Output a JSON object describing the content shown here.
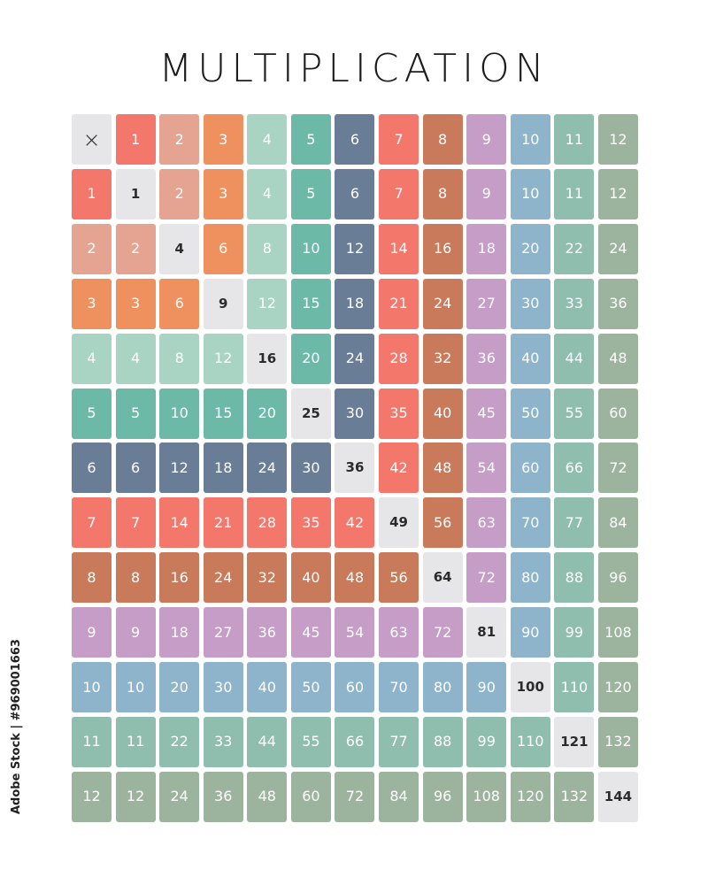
{
  "title": "MULTIPLICATION",
  "corner_symbol": "×",
  "side_text": "Adobe Stock | #969001663",
  "colors": {
    "diagonal": "#e6e6e8",
    "numbers": {
      "1": "#f4776b",
      "2": "#e5a392",
      "3": "#ef915f",
      "4": "#a9d4c3",
      "5": "#6db9a8",
      "6": "#6a7d96",
      "7": "#f4776b",
      "8": "#c87a5a",
      "9": "#c59dc7",
      "10": "#8eb4cc",
      "11": "#8fbdae",
      "12": "#9cb39e"
    },
    "text_light": "#ffffff",
    "text_dark": "#2b2b2b"
  },
  "table": {
    "header": [
      "×",
      "1",
      "2",
      "3",
      "4",
      "5",
      "6",
      "7",
      "8",
      "9",
      "10",
      "11",
      "12"
    ],
    "rows": [
      [
        "1",
        "1",
        "2",
        "3",
        "4",
        "5",
        "6",
        "7",
        "8",
        "9",
        "10",
        "11",
        "12"
      ],
      [
        "2",
        "2",
        "4",
        "6",
        "8",
        "10",
        "12",
        "14",
        "16",
        "18",
        "20",
        "22",
        "24"
      ],
      [
        "3",
        "3",
        "6",
        "9",
        "12",
        "15",
        "18",
        "21",
        "24",
        "27",
        "30",
        "33",
        "36"
      ],
      [
        "4",
        "4",
        "8",
        "12",
        "16",
        "20",
        "24",
        "28",
        "32",
        "36",
        "40",
        "44",
        "48"
      ],
      [
        "5",
        "5",
        "10",
        "15",
        "20",
        "25",
        "30",
        "35",
        "40",
        "45",
        "50",
        "55",
        "60"
      ],
      [
        "6",
        "6",
        "12",
        "18",
        "24",
        "30",
        "36",
        "42",
        "48",
        "54",
        "60",
        "66",
        "72"
      ],
      [
        "7",
        "7",
        "14",
        "21",
        "28",
        "35",
        "42",
        "49",
        "56",
        "63",
        "70",
        "77",
        "84"
      ],
      [
        "8",
        "8",
        "16",
        "24",
        "32",
        "40",
        "48",
        "56",
        "64",
        "72",
        "80",
        "88",
        "96"
      ],
      [
        "9",
        "9",
        "18",
        "27",
        "36",
        "45",
        "54",
        "63",
        "72",
        "81",
        "90",
        "99",
        "108"
      ],
      [
        "10",
        "10",
        "20",
        "30",
        "40",
        "50",
        "60",
        "70",
        "80",
        "90",
        "100",
        "110",
        "120"
      ],
      [
        "11",
        "11",
        "22",
        "33",
        "44",
        "55",
        "66",
        "77",
        "88",
        "99",
        "110",
        "121",
        "132"
      ],
      [
        "12",
        "12",
        "24",
        "36",
        "48",
        "60",
        "72",
        "84",
        "96",
        "108",
        "120",
        "132",
        "144"
      ]
    ]
  }
}
